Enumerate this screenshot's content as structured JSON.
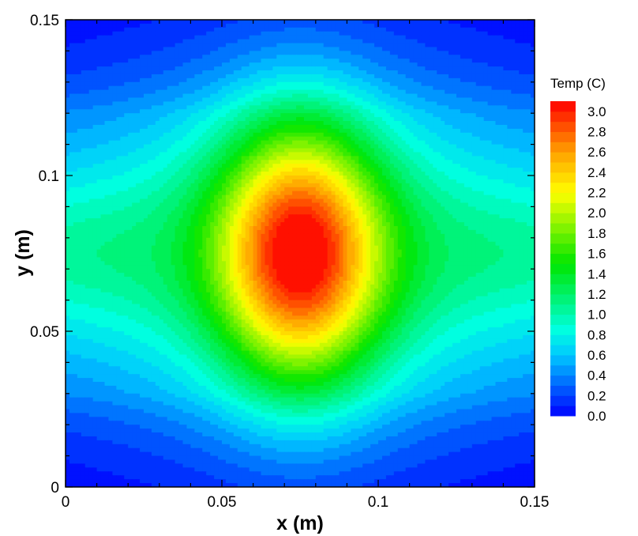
{
  "chart_data": {
    "type": "heatmap",
    "subtype": "filled-contour",
    "title": "",
    "xlabel": "x (m)",
    "ylabel": "y (m)",
    "xlim": [
      0,
      0.15
    ],
    "ylim": [
      0,
      0.15
    ],
    "x_ticks": [
      0,
      0.05,
      0.1,
      0.15
    ],
    "x_tick_labels": [
      "0",
      "0.05",
      "0.1",
      "0.15"
    ],
    "y_ticks": [
      0,
      0.05,
      0.1,
      0.15
    ],
    "y_tick_labels": [
      "0",
      "0.05",
      "0.1",
      "0.15"
    ],
    "grid": false,
    "legend": {
      "title": "Temp (C)",
      "placement": "right",
      "min": 0.0,
      "max": 3.1,
      "step": 0.1,
      "labels": [
        "0.0",
        "0.2",
        "0.4",
        "0.6",
        "0.8",
        "1.0",
        "1.2",
        "1.4",
        "1.6",
        "1.8",
        "2.0",
        "2.2",
        "2.4",
        "2.6",
        "2.8",
        "3.0"
      ]
    },
    "colormap": [
      {
        "value": 0.0,
        "color": "#0000ff"
      },
      {
        "value": 0.6,
        "color": "#00c8ff"
      },
      {
        "value": 0.85,
        "color": "#00ffe0"
      },
      {
        "value": 1.5,
        "color": "#00e600"
      },
      {
        "value": 2.2,
        "color": "#ffff00"
      },
      {
        "value": 2.6,
        "color": "#ffa000"
      },
      {
        "value": 3.1,
        "color": "#ff0000"
      }
    ],
    "peak": {
      "x": 0.075,
      "y": 0.075,
      "value": 3.05
    },
    "field_range": [
      0.0,
      3.05
    ]
  }
}
